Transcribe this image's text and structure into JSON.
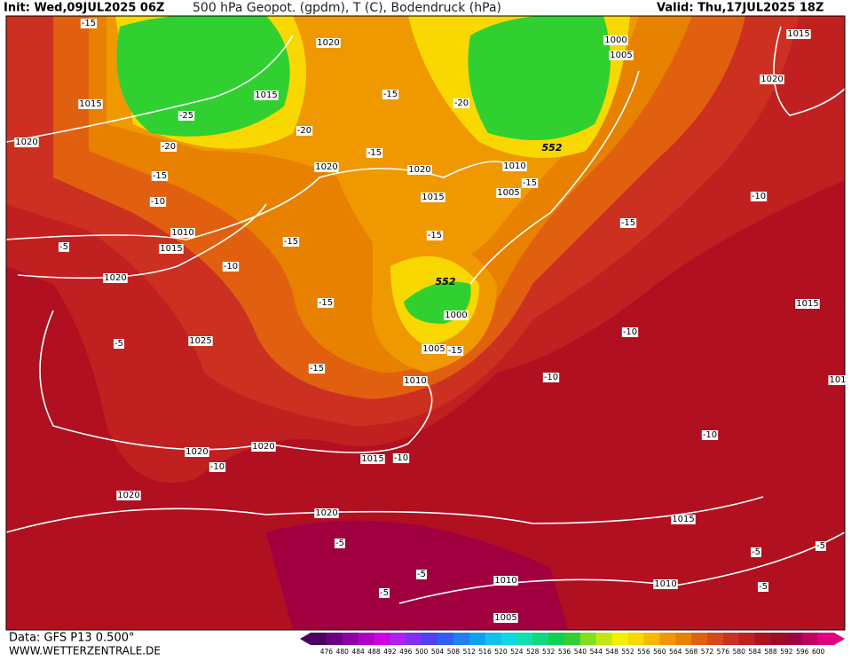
{
  "header": {
    "init": "Init: Wed,09JUL2025 06Z",
    "title": "500 hPa Geopot. (gpdm), T (C), Bodendruck (hPa)",
    "valid": "Valid: Thu,17JUL2025 18Z"
  },
  "footer": {
    "data": "Data: GFS P13 0.500°",
    "site": "WWW.WETTERZENTRALE.DE"
  },
  "isobar_labels": [
    "1020",
    "1000",
    "1005",
    "1015",
    "1015",
    "1015",
    "1020",
    "1020",
    "1020",
    "1020",
    "1010",
    "1015",
    "1005",
    "1010",
    "1015",
    "1020",
    "1000",
    "1015",
    "1025",
    "1005",
    "1010",
    "1020",
    "1020",
    "1015",
    "1020",
    "1020",
    "1015",
    "1010",
    "1010",
    "1005",
    "101"
  ],
  "temperature_labels": [
    "-15",
    "-25",
    "-20",
    "-15",
    "-10",
    "-5",
    "-20",
    "-15",
    "-15",
    "-20",
    "-15",
    "-15",
    "-15",
    "-10",
    "-15",
    "-15",
    "-10",
    "-15",
    "-5",
    "-15",
    "-10",
    "-10",
    "-10",
    "-10",
    "-10",
    "-5",
    "-5",
    "-5",
    "-5",
    "-5",
    "-5"
  ],
  "geopotential_labels": [
    "552",
    "552"
  ],
  "colorbar": {
    "labels": [
      "476",
      "480",
      "484",
      "488",
      "492",
      "496",
      "500",
      "504",
      "508",
      "512",
      "516",
      "520",
      "524",
      "528",
      "532",
      "536",
      "540",
      "544",
      "548",
      "552",
      "556",
      "560",
      "564",
      "568",
      "572",
      "576",
      "580",
      "584",
      "588",
      "592",
      "596",
      "600"
    ],
    "colors": [
      "#4b0060",
      "#6a0080",
      "#8c00a0",
      "#b000c0",
      "#d000e0",
      "#b020f0",
      "#8030f0",
      "#5040f0",
      "#3060f0",
      "#2080f0",
      "#10a0f0",
      "#10c0f0",
      "#10d8e0",
      "#10e0b0",
      "#10d880",
      "#10d050",
      "#30d030",
      "#80e020",
      "#c0e810",
      "#f0f000",
      "#f8d800",
      "#f8b800",
      "#f09800",
      "#e88000",
      "#e06010",
      "#d84818",
      "#cc3020",
      "#c02020",
      "#b01020",
      "#a00a28",
      "#a00040",
      "#c00060",
      "#e00080"
    ]
  }
}
